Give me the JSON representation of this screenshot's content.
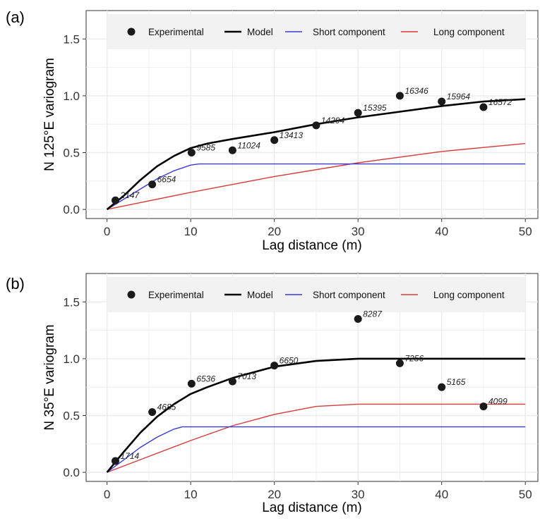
{
  "colors": {
    "experimental": "#1a1a1a",
    "model": "#000000",
    "short": "#3a3ad6",
    "long": "#d93a3a",
    "grid": "#ebebeb",
    "legend_bg": "#f2f2f2"
  },
  "chart_data": [
    {
      "type": "scatter",
      "panel_label": "(a)",
      "xlabel": "Lag distance (m)",
      "ylabel": "N 125°E variogram",
      "xlim": [
        -2.5,
        51.5
      ],
      "ylim": [
        -0.08,
        1.75
      ],
      "xticks": [
        "0",
        "10",
        "20",
        "30",
        "40",
        "50"
      ],
      "yticks": [
        "0.0",
        "0.5",
        "1.0",
        "1.5"
      ],
      "legend": {
        "position": "top",
        "entries": [
          "Experimental",
          "Model",
          "Short component",
          "Long component"
        ]
      },
      "grid": true,
      "series": [
        {
          "name": "Experimental",
          "kind": "points",
          "x": [
            1,
            5.4,
            10.1,
            15,
            20,
            25,
            30,
            35,
            40,
            45
          ],
          "y": [
            0.08,
            0.22,
            0.5,
            0.52,
            0.61,
            0.74,
            0.85,
            1.0,
            0.95,
            0.9
          ],
          "labels": [
            "2147",
            "6654",
            "9585",
            "11024",
            "13413",
            "14294",
            "15395",
            "16346",
            "15964",
            "16572"
          ]
        },
        {
          "name": "Model",
          "kind": "line",
          "x": [
            0,
            2,
            4,
            6,
            8,
            10,
            12,
            15,
            20,
            25,
            30,
            35,
            40,
            45,
            50
          ],
          "y": [
            0,
            0.12,
            0.26,
            0.38,
            0.47,
            0.54,
            0.58,
            0.62,
            0.68,
            0.75,
            0.81,
            0.86,
            0.91,
            0.95,
            0.97
          ]
        },
        {
          "name": "Short component",
          "kind": "line",
          "x": [
            0,
            2,
            4,
            6,
            8,
            10,
            11,
            50
          ],
          "y": [
            0,
            0.09,
            0.18,
            0.27,
            0.34,
            0.39,
            0.4,
            0.4
          ]
        },
        {
          "name": "Long component",
          "kind": "line",
          "x": [
            0,
            10,
            20,
            30,
            40,
            50
          ],
          "y": [
            0,
            0.15,
            0.29,
            0.41,
            0.51,
            0.58
          ]
        }
      ]
    },
    {
      "type": "scatter",
      "panel_label": "(b)",
      "xlabel": "Lag distance (m)",
      "ylabel": "N 35°E variogram",
      "xlim": [
        -2.5,
        51.5
      ],
      "ylim": [
        -0.08,
        1.75
      ],
      "xticks": [
        "0",
        "10",
        "20",
        "30",
        "40",
        "50"
      ],
      "yticks": [
        "0.0",
        "0.5",
        "1.0",
        "1.5"
      ],
      "legend": {
        "position": "top",
        "entries": [
          "Experimental",
          "Model",
          "Short component",
          "Long component"
        ]
      },
      "grid": true,
      "series": [
        {
          "name": "Experimental",
          "kind": "points",
          "x": [
            1,
            5.4,
            10.1,
            15,
            20,
            30,
            35,
            40,
            45
          ],
          "y": [
            0.1,
            0.53,
            0.78,
            0.8,
            0.94,
            1.35,
            0.96,
            0.75,
            0.58
          ],
          "labels": [
            "1714",
            "4685",
            "6536",
            "7013",
            "6650",
            "8287",
            "7256",
            "5165",
            "4099"
          ]
        },
        {
          "name": "Model",
          "kind": "line",
          "x": [
            0,
            2,
            4,
            6,
            8,
            10,
            12,
            15,
            20,
            25,
            30,
            50
          ],
          "y": [
            0,
            0.18,
            0.35,
            0.49,
            0.6,
            0.69,
            0.75,
            0.83,
            0.93,
            0.98,
            1.0,
            1.0
          ]
        },
        {
          "name": "Short component",
          "kind": "line",
          "x": [
            0,
            2,
            4,
            6,
            8,
            9,
            50
          ],
          "y": [
            0,
            0.11,
            0.22,
            0.31,
            0.38,
            0.4,
            0.4
          ]
        },
        {
          "name": "Long component",
          "kind": "line",
          "x": [
            0,
            5,
            10,
            15,
            20,
            25,
            30,
            50
          ],
          "y": [
            0,
            0.14,
            0.28,
            0.41,
            0.51,
            0.58,
            0.6,
            0.6
          ]
        }
      ]
    }
  ]
}
